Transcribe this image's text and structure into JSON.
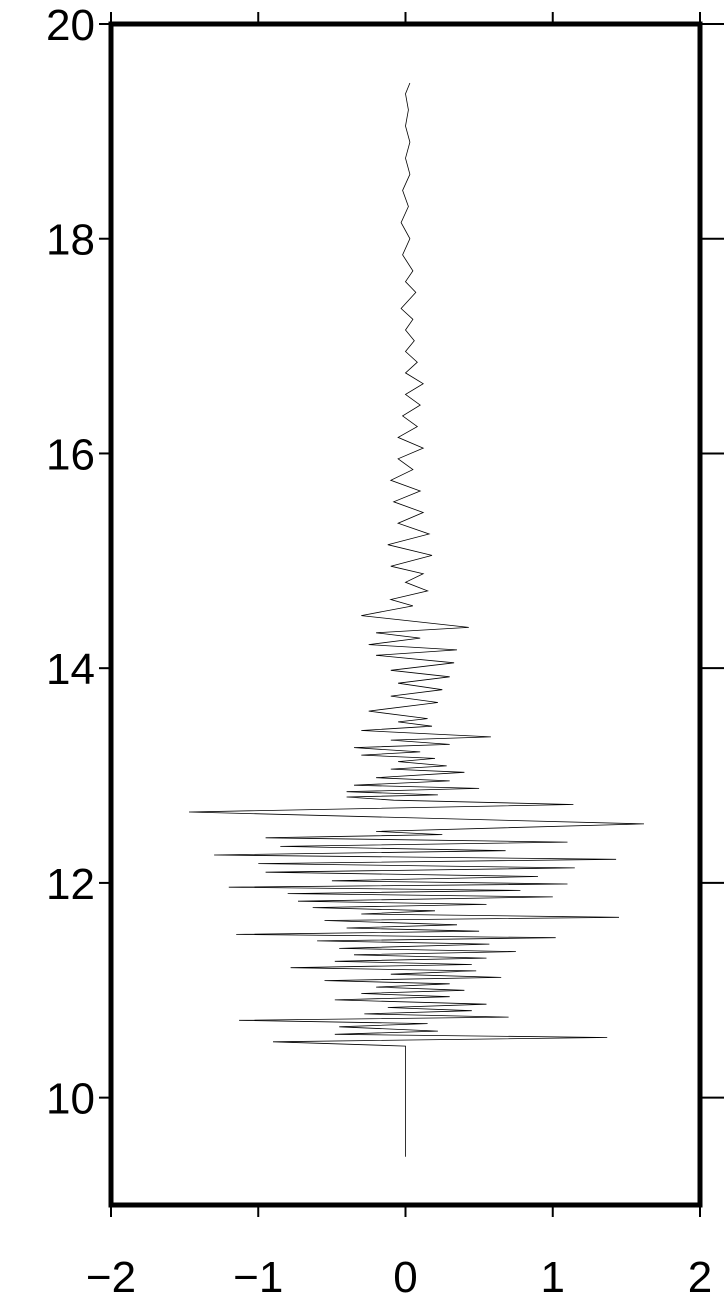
{
  "chart_data": {
    "type": "line",
    "title": "",
    "xlabel": "",
    "ylabel": "",
    "xlim": [
      -2,
      2
    ],
    "ylim": [
      9,
      20
    ],
    "x_ticks": [
      {
        "value": -2,
        "label": "−2"
      },
      {
        "value": -1,
        "label": "−1"
      },
      {
        "value": 0,
        "label": "0"
      },
      {
        "value": 1,
        "label": "1"
      },
      {
        "value": 2,
        "label": "2"
      }
    ],
    "y_ticks": [
      {
        "value": 10,
        "label": "10"
      },
      {
        "value": 12,
        "label": "12"
      },
      {
        "value": 14,
        "label": "14"
      },
      {
        "value": 16,
        "label": "16"
      },
      {
        "value": 18,
        "label": "18"
      },
      {
        "value": 20,
        "label": "20"
      }
    ],
    "grid": false,
    "series": [
      {
        "points": [
          [
            0.0,
            9.45
          ],
          [
            0.0,
            9.7
          ],
          [
            0.0,
            10.0
          ],
          [
            0.0,
            10.3
          ],
          [
            0.0,
            10.48
          ],
          [
            -0.9,
            10.52
          ],
          [
            1.37,
            10.56
          ],
          [
            -0.48,
            10.59
          ],
          [
            0.22,
            10.62
          ],
          [
            -0.45,
            10.66
          ],
          [
            0.15,
            10.69
          ],
          [
            -1.13,
            10.72
          ],
          [
            0.7,
            10.75
          ],
          [
            -0.28,
            10.78
          ],
          [
            0.45,
            10.81
          ],
          [
            -0.12,
            10.84
          ],
          [
            0.55,
            10.87
          ],
          [
            -0.48,
            10.91
          ],
          [
            0.3,
            10.94
          ],
          [
            -0.3,
            10.97
          ],
          [
            0.4,
            11.0
          ],
          [
            -0.2,
            11.03
          ],
          [
            0.3,
            11.06
          ],
          [
            -0.55,
            11.09
          ],
          [
            0.65,
            11.12
          ],
          [
            -0.1,
            11.15
          ],
          [
            0.48,
            11.18
          ],
          [
            -0.78,
            11.21
          ],
          [
            0.45,
            11.24
          ],
          [
            -0.48,
            11.27
          ],
          [
            0.55,
            11.3
          ],
          [
            -0.35,
            11.33
          ],
          [
            0.75,
            11.36
          ],
          [
            -0.45,
            11.39
          ],
          [
            0.57,
            11.43
          ],
          [
            -0.6,
            11.46
          ],
          [
            1.02,
            11.49
          ],
          [
            -1.15,
            11.52
          ],
          [
            0.5,
            11.55
          ],
          [
            -0.4,
            11.58
          ],
          [
            0.35,
            11.61
          ],
          [
            -0.55,
            11.65
          ],
          [
            1.45,
            11.68
          ],
          [
            -0.3,
            11.71
          ],
          [
            0.2,
            11.74
          ],
          [
            -0.63,
            11.77
          ],
          [
            0.55,
            11.8
          ],
          [
            -0.73,
            11.83
          ],
          [
            1.0,
            11.87
          ],
          [
            -0.8,
            11.9
          ],
          [
            0.78,
            11.93
          ],
          [
            -1.2,
            11.96
          ],
          [
            1.1,
            11.99
          ],
          [
            -0.5,
            12.02
          ],
          [
            0.9,
            12.06
          ],
          [
            -0.95,
            12.1
          ],
          [
            1.15,
            12.14
          ],
          [
            -1.0,
            12.18
          ],
          [
            1.43,
            12.22
          ],
          [
            -1.3,
            12.26
          ],
          [
            0.68,
            12.3
          ],
          [
            -0.85,
            12.34
          ],
          [
            1.1,
            12.38
          ],
          [
            -0.95,
            12.42
          ],
          [
            0.25,
            12.45
          ],
          [
            -0.2,
            12.48
          ],
          [
            1.62,
            12.55
          ],
          [
            -1.47,
            12.66
          ],
          [
            1.14,
            12.73
          ],
          [
            -0.08,
            12.77
          ],
          [
            -0.4,
            12.8
          ],
          [
            0.22,
            12.82
          ],
          [
            -0.4,
            12.85
          ],
          [
            0.5,
            12.88
          ],
          [
            -0.35,
            12.91
          ],
          [
            0.3,
            12.95
          ],
          [
            -0.2,
            12.98
          ],
          [
            0.4,
            13.03
          ],
          [
            -0.1,
            13.06
          ],
          [
            0.28,
            13.09
          ],
          [
            -0.05,
            13.13
          ],
          [
            0.2,
            13.16
          ],
          [
            -0.3,
            13.19
          ],
          [
            0.1,
            13.22
          ],
          [
            -0.35,
            13.26
          ],
          [
            0.3,
            13.29
          ],
          [
            -0.1,
            13.33
          ],
          [
            0.58,
            13.36
          ],
          [
            -0.3,
            13.42
          ],
          [
            0.18,
            13.46
          ],
          [
            -0.05,
            13.5
          ],
          [
            0.15,
            13.53
          ],
          [
            -0.25,
            13.6
          ],
          [
            0.22,
            13.68
          ],
          [
            -0.1,
            13.74
          ],
          [
            0.25,
            13.8
          ],
          [
            -0.05,
            13.86
          ],
          [
            0.3,
            13.92
          ],
          [
            -0.1,
            13.98
          ],
          [
            0.33,
            14.05
          ],
          [
            -0.2,
            14.12
          ],
          [
            0.35,
            14.17
          ],
          [
            -0.25,
            14.22
          ],
          [
            0.1,
            14.28
          ],
          [
            -0.2,
            14.33
          ],
          [
            0.43,
            14.38
          ],
          [
            -0.3,
            14.49
          ],
          [
            0.05,
            14.58
          ],
          [
            -0.1,
            14.64
          ],
          [
            0.15,
            14.72
          ],
          [
            0.0,
            14.8
          ],
          [
            0.12,
            14.88
          ],
          [
            -0.1,
            14.95
          ],
          [
            0.18,
            15.05
          ],
          [
            -0.12,
            15.15
          ],
          [
            0.16,
            15.25
          ],
          [
            -0.05,
            15.35
          ],
          [
            0.12,
            15.45
          ],
          [
            -0.08,
            15.55
          ],
          [
            0.1,
            15.65
          ],
          [
            -0.1,
            15.75
          ],
          [
            0.05,
            15.85
          ],
          [
            -0.05,
            15.95
          ],
          [
            0.12,
            16.05
          ],
          [
            -0.05,
            16.15
          ],
          [
            0.08,
            16.25
          ],
          [
            -0.02,
            16.35
          ],
          [
            0.1,
            16.45
          ],
          [
            0.0,
            16.55
          ],
          [
            0.12,
            16.65
          ],
          [
            0.0,
            16.75
          ],
          [
            0.08,
            16.85
          ],
          [
            0.0,
            16.95
          ],
          [
            0.06,
            17.05
          ],
          [
            0.0,
            17.15
          ],
          [
            0.05,
            17.25
          ],
          [
            -0.03,
            17.35
          ],
          [
            0.07,
            17.5
          ],
          [
            0.0,
            17.6
          ],
          [
            0.05,
            17.7
          ],
          [
            -0.02,
            17.85
          ],
          [
            0.03,
            18.0
          ],
          [
            -0.03,
            18.15
          ],
          [
            0.02,
            18.3
          ],
          [
            -0.02,
            18.45
          ],
          [
            0.03,
            18.6
          ],
          [
            0.0,
            18.75
          ],
          [
            0.03,
            18.9
          ],
          [
            0.0,
            19.05
          ],
          [
            0.02,
            19.2
          ],
          [
            0.0,
            19.35
          ],
          [
            0.03,
            19.45
          ]
        ]
      }
    ]
  }
}
